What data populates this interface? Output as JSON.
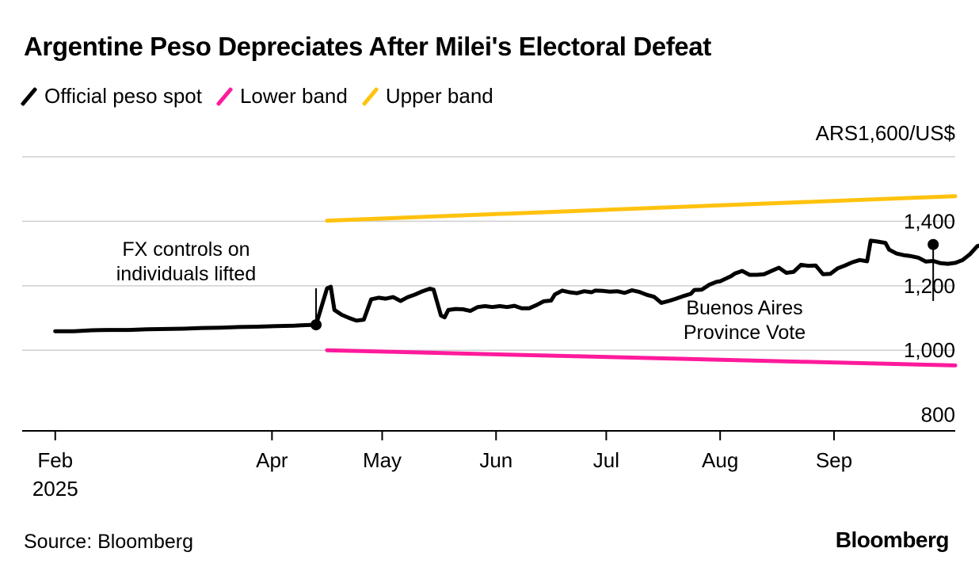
{
  "chart_data": {
    "type": "line",
    "title": "Argentine Peso Depreciates After Milei's Electoral Defeat",
    "units_label": "ARS1,600/US$",
    "ylim": [
      750,
      1600
    ],
    "yticks": [
      800,
      1000,
      1200,
      1400
    ],
    "ytick_labels": [
      "800",
      "1,000",
      "1,200",
      "1,400"
    ],
    "gridlines": [
      1000,
      1200,
      1400,
      1600
    ],
    "x_range_days": [
      -9,
      245
    ],
    "xticks": [
      {
        "label": "Feb",
        "day": 0
      },
      {
        "label": "Apr",
        "day": 59
      },
      {
        "label": "May",
        "day": 89
      },
      {
        "label": "Jun",
        "day": 120
      },
      {
        "label": "Jul",
        "day": 150
      },
      {
        "label": "Aug",
        "day": 181
      },
      {
        "label": "Sep",
        "day": 212
      }
    ],
    "year_label": "2025",
    "legend": [
      {
        "name": "Official peso spot",
        "color": "#000000"
      },
      {
        "name": "Lower band",
        "color": "#ff1a9c"
      },
      {
        "name": "Upper band",
        "color": "#ffc20e"
      }
    ],
    "series": [
      {
        "name": "Official peso spot",
        "color": "#000000",
        "points": [
          [
            0,
            1059
          ],
          [
            5,
            1059
          ],
          [
            10,
            1062
          ],
          [
            15,
            1063
          ],
          [
            20,
            1063
          ],
          [
            25,
            1065
          ],
          [
            30,
            1066
          ],
          [
            35,
            1067
          ],
          [
            40,
            1069
          ],
          [
            45,
            1070
          ],
          [
            50,
            1072
          ],
          [
            55,
            1073
          ],
          [
            60,
            1075
          ],
          [
            65,
            1076
          ],
          [
            68,
            1078
          ],
          [
            71,
            1079
          ],
          [
            74,
            1192
          ],
          [
            75,
            1197
          ],
          [
            76,
            1125
          ],
          [
            78,
            1110
          ],
          [
            80,
            1100
          ],
          [
            82,
            1092
          ],
          [
            84,
            1095
          ],
          [
            86,
            1158
          ],
          [
            88,
            1163
          ],
          [
            90,
            1160
          ],
          [
            92,
            1165
          ],
          [
            94,
            1153
          ],
          [
            96,
            1165
          ],
          [
            98,
            1173
          ],
          [
            100,
            1183
          ],
          [
            102,
            1191
          ],
          [
            103,
            1188
          ],
          [
            105,
            1108
          ],
          [
            106,
            1102
          ],
          [
            107,
            1125
          ],
          [
            109,
            1128
          ],
          [
            111,
            1127
          ],
          [
            113,
            1122
          ],
          [
            115,
            1134
          ],
          [
            117,
            1137
          ],
          [
            119,
            1134
          ],
          [
            121,
            1137
          ],
          [
            123,
            1134
          ],
          [
            125,
            1138
          ],
          [
            127,
            1130
          ],
          [
            129,
            1130
          ],
          [
            131,
            1140
          ],
          [
            133,
            1152
          ],
          [
            135,
            1154
          ],
          [
            136,
            1173
          ],
          [
            138,
            1185
          ],
          [
            140,
            1180
          ],
          [
            142,
            1177
          ],
          [
            144,
            1183
          ],
          [
            146,
            1180
          ],
          [
            147,
            1185
          ],
          [
            149,
            1184
          ],
          [
            151,
            1182
          ],
          [
            153,
            1183
          ],
          [
            155,
            1178
          ],
          [
            157,
            1186
          ],
          [
            159,
            1181
          ],
          [
            161,
            1172
          ],
          [
            163,
            1166
          ],
          [
            165,
            1147
          ],
          [
            167,
            1153
          ],
          [
            169,
            1160
          ],
          [
            171,
            1168
          ],
          [
            173,
            1175
          ],
          [
            174,
            1187
          ],
          [
            176,
            1188
          ],
          [
            178,
            1203
          ],
          [
            180,
            1212
          ],
          [
            181,
            1214
          ],
          [
            184,
            1230
          ],
          [
            185,
            1238
          ],
          [
            187,
            1246
          ],
          [
            189,
            1234
          ],
          [
            191,
            1234
          ],
          [
            193,
            1236
          ],
          [
            195,
            1246
          ],
          [
            197,
            1256
          ],
          [
            199,
            1240
          ],
          [
            201,
            1243
          ],
          [
            203,
            1265
          ],
          [
            205,
            1262
          ],
          [
            207,
            1263
          ],
          [
            209,
            1236
          ],
          [
            211,
            1237
          ],
          [
            213,
            1254
          ],
          [
            215,
            1263
          ],
          [
            217,
            1273
          ],
          [
            219,
            1280
          ],
          [
            221,
            1276
          ],
          [
            222,
            1340
          ],
          [
            224,
            1337
          ],
          [
            226,
            1333
          ],
          [
            227,
            1312
          ],
          [
            229,
            1300
          ],
          [
            231,
            1295
          ],
          [
            233,
            1292
          ],
          [
            235,
            1287
          ],
          [
            237,
            1275
          ],
          [
            239,
            1277
          ],
          [
            241,
            1270
          ],
          [
            243,
            1268
          ],
          [
            245,
            1271
          ],
          [
            247,
            1280
          ],
          [
            249,
            1298
          ],
          [
            251,
            1323
          ],
          [
            253,
            1329
          ],
          [
            255,
            1330
          ]
        ]
      },
      {
        "name": "Lower band",
        "color": "#ff1a9c",
        "points": [
          [
            74,
            1000
          ],
          [
            245,
            953
          ]
        ]
      },
      {
        "name": "Upper band",
        "color": "#ffc20e",
        "points": [
          [
            74,
            1402
          ],
          [
            245,
            1478
          ]
        ]
      }
    ],
    "annotations": [
      {
        "lines": [
          "FX controls on",
          "individuals lifted"
        ],
        "day": 71,
        "value": 1079
      },
      {
        "lines": [
          "Buenos Aires",
          "Province Vote"
        ],
        "day": 239,
        "value": 1328
      }
    ]
  },
  "footer": {
    "source": "Source: Bloomberg",
    "logo": "Bloomberg"
  }
}
